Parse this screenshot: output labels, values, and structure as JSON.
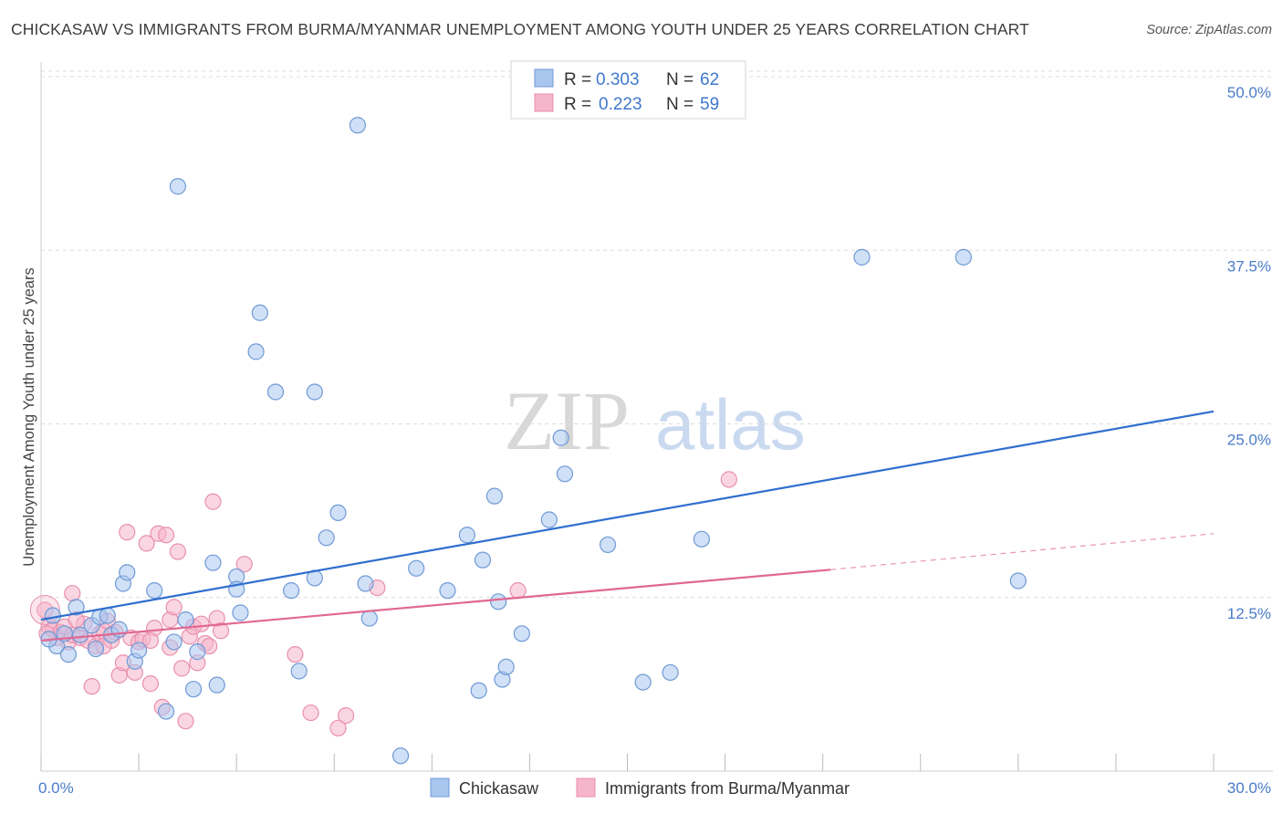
{
  "title": "CHICKASAW VS IMMIGRANTS FROM BURMA/MYANMAR UNEMPLOYMENT AMONG YOUTH UNDER 25 YEARS CORRELATION CHART",
  "source": "Source: ZipAtlas.com",
  "watermark": {
    "zip": "ZIP",
    "atlas": "atlas"
  },
  "colors": {
    "chickasaw_fill": "#a9c6ee",
    "chickasaw_stroke": "#6f9ad6",
    "chickasaw_line": "#2f6fcf",
    "burma_fill": "#f5b5ca",
    "burma_stroke": "#e890ad",
    "burma_line": "#e06892",
    "tick_text": "#4a7cc9",
    "grid": "#dcdcdc"
  },
  "legend": {
    "rows": [
      {
        "r_label": "R =",
        "r_value": "0.303",
        "n_label": "N =",
        "n_value": "62"
      },
      {
        "r_label": "R =",
        "r_value": "0.223",
        "n_label": "N =",
        "n_value": "59"
      }
    ]
  },
  "chart_data": {
    "type": "scatter",
    "title": "CHICKASAW VS IMMIGRANTS FROM BURMA/MYANMAR UNEMPLOYMENT AMONG YOUTH UNDER 25 YEARS CORRELATION CHART",
    "xlabel": "",
    "ylabel": "Unemployment Among Youth under 25 years",
    "xlim": [
      0,
      30
    ],
    "ylim": [
      0,
      50
    ],
    "x_tick_labels": [
      "0.0%",
      "30.0%"
    ],
    "y_ticks": [
      12.5,
      25.0,
      37.5,
      50.0
    ],
    "y_tick_labels": [
      "12.5%",
      "25.0%",
      "37.5%",
      "50.0%"
    ],
    "grid": true,
    "legend_position": "top-center and bottom",
    "series": [
      {
        "name": "Chickasaw",
        "r": 0.303,
        "n": 62,
        "trend": {
          "x": [
            0,
            30
          ],
          "y": [
            10.9,
            25.9
          ],
          "dashed_extension": false
        },
        "points": [
          [
            0.3,
            11.2
          ],
          [
            0.4,
            9.0
          ],
          [
            0.6,
            9.9
          ],
          [
            0.7,
            8.4
          ],
          [
            0.9,
            11.8
          ],
          [
            1.0,
            9.8
          ],
          [
            1.3,
            10.5
          ],
          [
            1.4,
            8.8
          ],
          [
            1.5,
            11.1
          ],
          [
            1.7,
            11.2
          ],
          [
            1.8,
            9.8
          ],
          [
            2.1,
            13.5
          ],
          [
            2.2,
            14.3
          ],
          [
            2.4,
            7.9
          ],
          [
            2.5,
            8.7
          ],
          [
            2.9,
            13.0
          ],
          [
            3.2,
            4.3
          ],
          [
            3.4,
            9.3
          ],
          [
            3.5,
            42.1
          ],
          [
            3.7,
            10.9
          ],
          [
            3.9,
            5.9
          ],
          [
            4.0,
            8.6
          ],
          [
            4.4,
            15.0
          ],
          [
            4.5,
            6.2
          ],
          [
            5.0,
            14.0
          ],
          [
            5.1,
            11.4
          ],
          [
            5.5,
            30.2
          ],
          [
            5.6,
            33.0
          ],
          [
            6.0,
            27.3
          ],
          [
            6.4,
            13.0
          ],
          [
            6.6,
            7.2
          ],
          [
            7.0,
            13.9
          ],
          [
            7.0,
            27.3
          ],
          [
            7.3,
            16.8
          ],
          [
            7.6,
            18.6
          ],
          [
            8.1,
            46.5
          ],
          [
            8.3,
            13.5
          ],
          [
            8.4,
            11.0
          ],
          [
            9.2,
            1.1
          ],
          [
            9.6,
            14.6
          ],
          [
            10.4,
            13.0
          ],
          [
            10.9,
            17.0
          ],
          [
            11.2,
            5.8
          ],
          [
            11.3,
            15.2
          ],
          [
            11.6,
            19.8
          ],
          [
            11.7,
            12.2
          ],
          [
            11.8,
            6.6
          ],
          [
            11.9,
            7.5
          ],
          [
            12.3,
            9.9
          ],
          [
            13.0,
            18.1
          ],
          [
            13.3,
            24.0
          ],
          [
            13.4,
            21.4
          ],
          [
            14.5,
            16.3
          ],
          [
            15.4,
            6.4
          ],
          [
            16.1,
            7.1
          ],
          [
            16.9,
            16.7
          ],
          [
            21.0,
            37.0
          ],
          [
            23.6,
            37.0
          ],
          [
            25.0,
            13.7
          ],
          [
            0.2,
            9.5
          ],
          [
            5.0,
            13.1
          ],
          [
            2.0,
            10.2
          ]
        ]
      },
      {
        "name": "Immigrants from Burma/Myanmar",
        "r": 0.223,
        "n": 59,
        "trend": {
          "x": [
            0,
            20.2
          ],
          "y": [
            9.4,
            14.5
          ],
          "dashed_extension": {
            "x": [
              20.2,
              30
            ],
            "y": [
              14.5,
              17.1
            ]
          }
        },
        "points": [
          [
            0.1,
            11.6
          ],
          [
            0.2,
            10.4
          ],
          [
            0.3,
            10.2
          ],
          [
            0.4,
            9.6
          ],
          [
            0.5,
            10.0
          ],
          [
            0.6,
            10.4
          ],
          [
            0.7,
            9.3
          ],
          [
            0.8,
            9.8
          ],
          [
            0.8,
            12.8
          ],
          [
            1.0,
            9.6
          ],
          [
            1.1,
            10.6
          ],
          [
            1.2,
            9.4
          ],
          [
            1.3,
            6.1
          ],
          [
            1.4,
            9.0
          ],
          [
            1.5,
            9.9
          ],
          [
            1.6,
            10.1
          ],
          [
            1.7,
            10.8
          ],
          [
            1.8,
            9.4
          ],
          [
            1.9,
            10.0
          ],
          [
            2.0,
            6.9
          ],
          [
            2.1,
            7.8
          ],
          [
            2.2,
            17.2
          ],
          [
            2.3,
            9.6
          ],
          [
            2.4,
            7.1
          ],
          [
            2.5,
            9.3
          ],
          [
            2.6,
            9.5
          ],
          [
            2.7,
            16.4
          ],
          [
            2.8,
            6.3
          ],
          [
            2.9,
            10.3
          ],
          [
            3.0,
            17.1
          ],
          [
            3.1,
            4.6
          ],
          [
            3.2,
            17.0
          ],
          [
            3.3,
            10.9
          ],
          [
            3.4,
            11.8
          ],
          [
            3.5,
            15.8
          ],
          [
            3.6,
            7.4
          ],
          [
            3.7,
            3.6
          ],
          [
            3.8,
            9.7
          ],
          [
            3.9,
            10.4
          ],
          [
            4.0,
            7.8
          ],
          [
            4.1,
            10.6
          ],
          [
            4.2,
            9.2
          ],
          [
            4.3,
            9.0
          ],
          [
            4.4,
            19.4
          ],
          [
            4.5,
            11.0
          ],
          [
            4.6,
            10.1
          ],
          [
            5.2,
            14.9
          ],
          [
            6.5,
            8.4
          ],
          [
            6.9,
            4.2
          ],
          [
            7.6,
            3.1
          ],
          [
            7.8,
            4.0
          ],
          [
            8.6,
            13.2
          ],
          [
            12.2,
            13.0
          ],
          [
            17.6,
            21.0
          ],
          [
            0.15,
            9.9
          ],
          [
            0.9,
            10.9
          ],
          [
            1.6,
            9.0
          ],
          [
            2.8,
            9.4
          ],
          [
            3.3,
            8.9
          ]
        ]
      }
    ]
  },
  "bottom_legend": {
    "items": [
      {
        "label": "Chickasaw"
      },
      {
        "label": "Immigrants from Burma/Myanmar"
      }
    ]
  }
}
